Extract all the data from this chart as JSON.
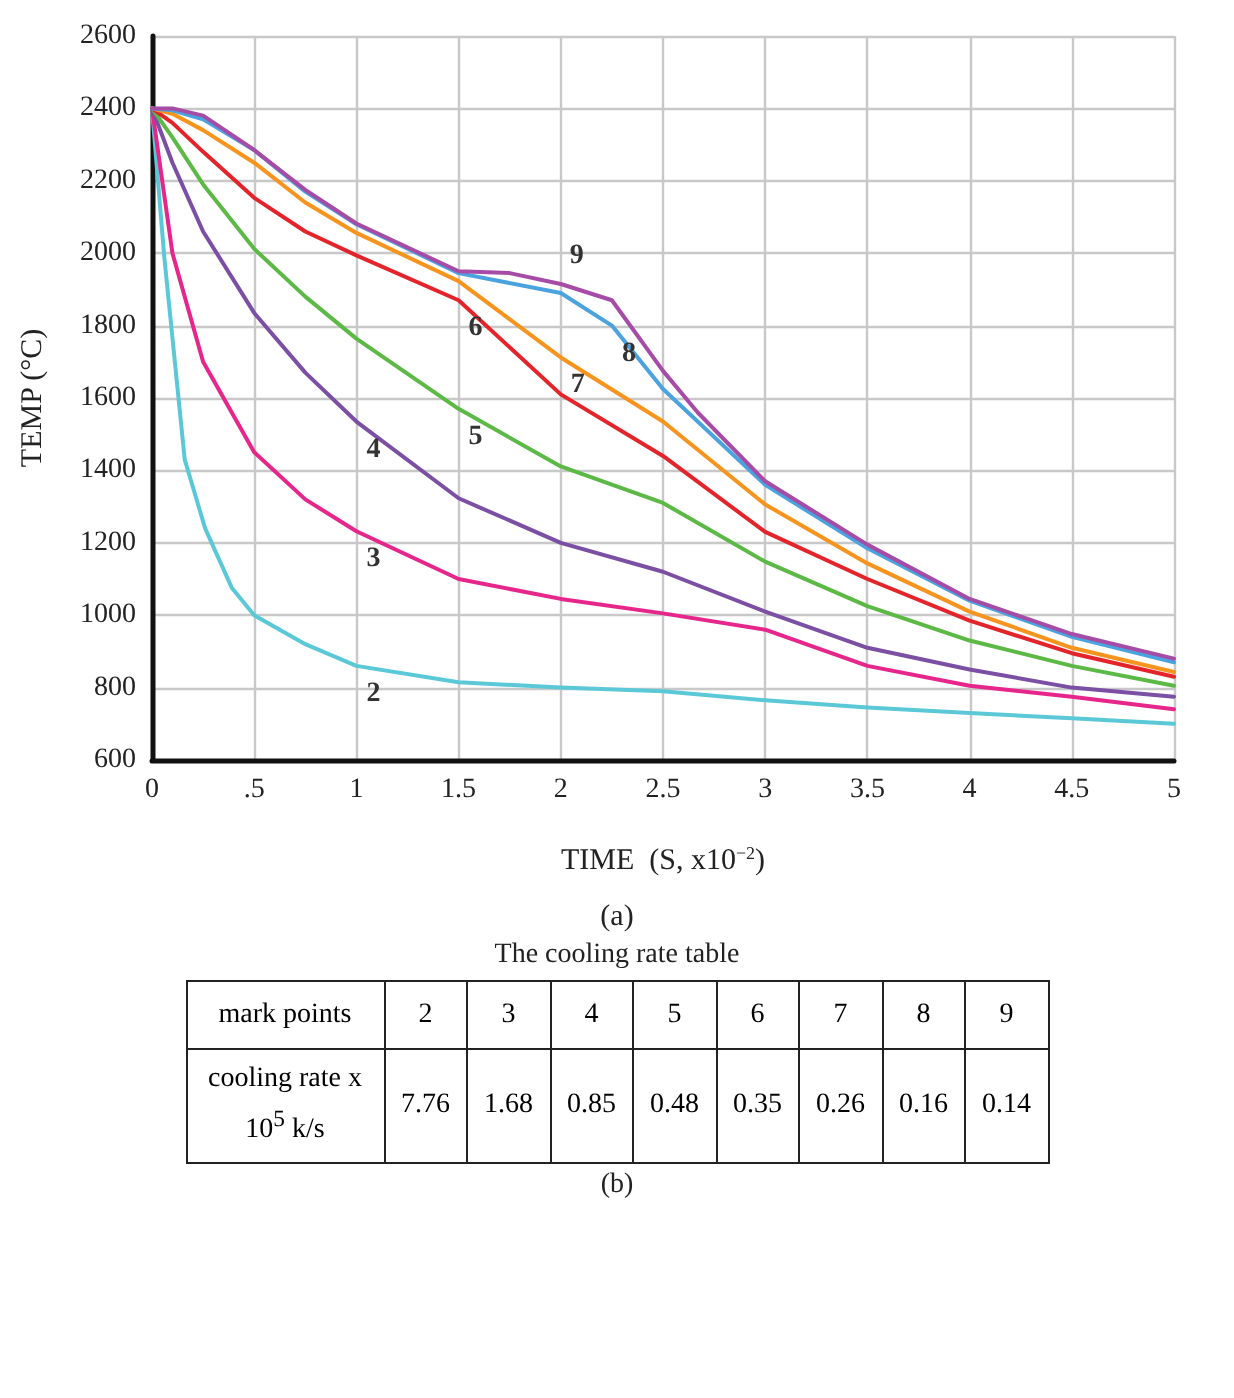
{
  "chart_data": {
    "type": "line",
    "xlabel": "TIME  (S, x10$^{−2}$)",
    "ylabel": "TEMP (°C)",
    "annotations": [
      "(a)",
      "The cooling rate table",
      "mark points",
      "2",
      "3",
      "4",
      "5",
      "6",
      "7",
      "8",
      "9",
      "cooling rate x 10$^{5}$ k/s",
      "7.76",
      "1.68",
      "0.85",
      "0.48",
      "0.35",
      "0.26",
      "0.16",
      "0.14",
      "(b)"
    ],
    "xlim": [
      0,
      5
    ],
    "ylim": [
      600,
      2600
    ],
    "xticks": [
      0,
      {
        "value": 0.5,
        "label": ".5"
      },
      1,
      1.5,
      2,
      2.5,
      3,
      3.5,
      4,
      4.5,
      5
    ],
    "yticks": [
      600,
      800,
      1000,
      1200,
      1400,
      1600,
      1800,
      2000,
      2200,
      2400,
      2600
    ],
    "grid": true,
    "legend": false,
    "marker": "none",
    "line_style": "solid",
    "series": [
      {
        "name": "2",
        "color": "#5bc8d8",
        "x": [
          0,
          0.06,
          0.16,
          0.26,
          0.39,
          0.5,
          0.75,
          1,
          1.5,
          2,
          2.5,
          3,
          3.5,
          4,
          4.5,
          5
        ],
        "values": [
          2400,
          1990,
          1430,
          1240,
          1076,
          1000,
          920,
          860,
          815,
          800,
          790,
          765,
          745,
          730,
          715,
          700
        ]
      },
      {
        "name": "3",
        "color": "#e6268a",
        "x": [
          0,
          0.1,
          0.25,
          0.5,
          0.75,
          1,
          1.5,
          2,
          2.5,
          3,
          3.5,
          4,
          4.5,
          5
        ],
        "values": [
          2400,
          2000,
          1700,
          1450,
          1320,
          1232,
          1100,
          1045,
          1005,
          960,
          860,
          805,
          775,
          740
        ]
      },
      {
        "name": "4",
        "color": "#7b4fa3",
        "x": [
          0,
          0.1,
          0.25,
          0.5,
          0.75,
          1,
          1.5,
          2,
          2.5,
          3,
          3.5,
          4,
          4.5,
          5
        ],
        "values": [
          2400,
          2250,
          2060,
          1835,
          1670,
          1535,
          1323,
          1200,
          1120,
          1010,
          910,
          850,
          800,
          775
        ]
      },
      {
        "name": "5",
        "color": "#5cb946",
        "x": [
          0,
          0.1,
          0.25,
          0.5,
          0.75,
          1,
          1.5,
          2,
          2.5,
          3,
          3.5,
          4,
          4.5,
          5
        ],
        "values": [
          2400,
          2320,
          2190,
          2012,
          1880,
          1764,
          1570,
          1411,
          1310,
          1148,
          1025,
          930,
          860,
          805
        ]
      },
      {
        "name": "6",
        "color": "#e3242b",
        "x": [
          0,
          0.1,
          0.25,
          0.5,
          0.75,
          1,
          1.5,
          2,
          2.5,
          3,
          3.5,
          4,
          4.5,
          5
        ],
        "values": [
          2400,
          2360,
          2280,
          2153,
          2060,
          1994,
          1870,
          1610,
          1440,
          1230,
          1100,
          985,
          895,
          830
        ]
      },
      {
        "name": "7",
        "color": "#f7941d",
        "x": [
          0,
          0.1,
          0.25,
          0.5,
          0.75,
          1,
          1.5,
          2,
          2.5,
          3,
          3.5,
          4,
          4.5,
          5
        ],
        "values": [
          2400,
          2385,
          2340,
          2250,
          2140,
          2056,
          1923,
          1712,
          1535,
          1306,
          1143,
          1010,
          910,
          843
        ]
      },
      {
        "name": "8",
        "color": "#4aa3df",
        "x": [
          0,
          0.1,
          0.25,
          0.5,
          0.75,
          1,
          1.5,
          2,
          2.25,
          2.5,
          3,
          3.5,
          4,
          4.5,
          5
        ],
        "values": [
          2400,
          2395,
          2370,
          2285,
          2170,
          2080,
          1945,
          1890,
          1800,
          1625,
          1360,
          1185,
          1040,
          940,
          870
        ]
      },
      {
        "name": "9",
        "color": "#a64ca6",
        "x": [
          0,
          0.1,
          0.25,
          0.5,
          0.75,
          1,
          1.5,
          1.75,
          2,
          2.25,
          2.5,
          2.67,
          3,
          3.5,
          4,
          4.5,
          5
        ],
        "values": [
          2400,
          2400,
          2380,
          2285,
          2175,
          2082,
          1950,
          1945,
          1915,
          1870,
          1675,
          1560,
          1370,
          1195,
          1045,
          948,
          880
        ]
      }
    ]
  }
}
